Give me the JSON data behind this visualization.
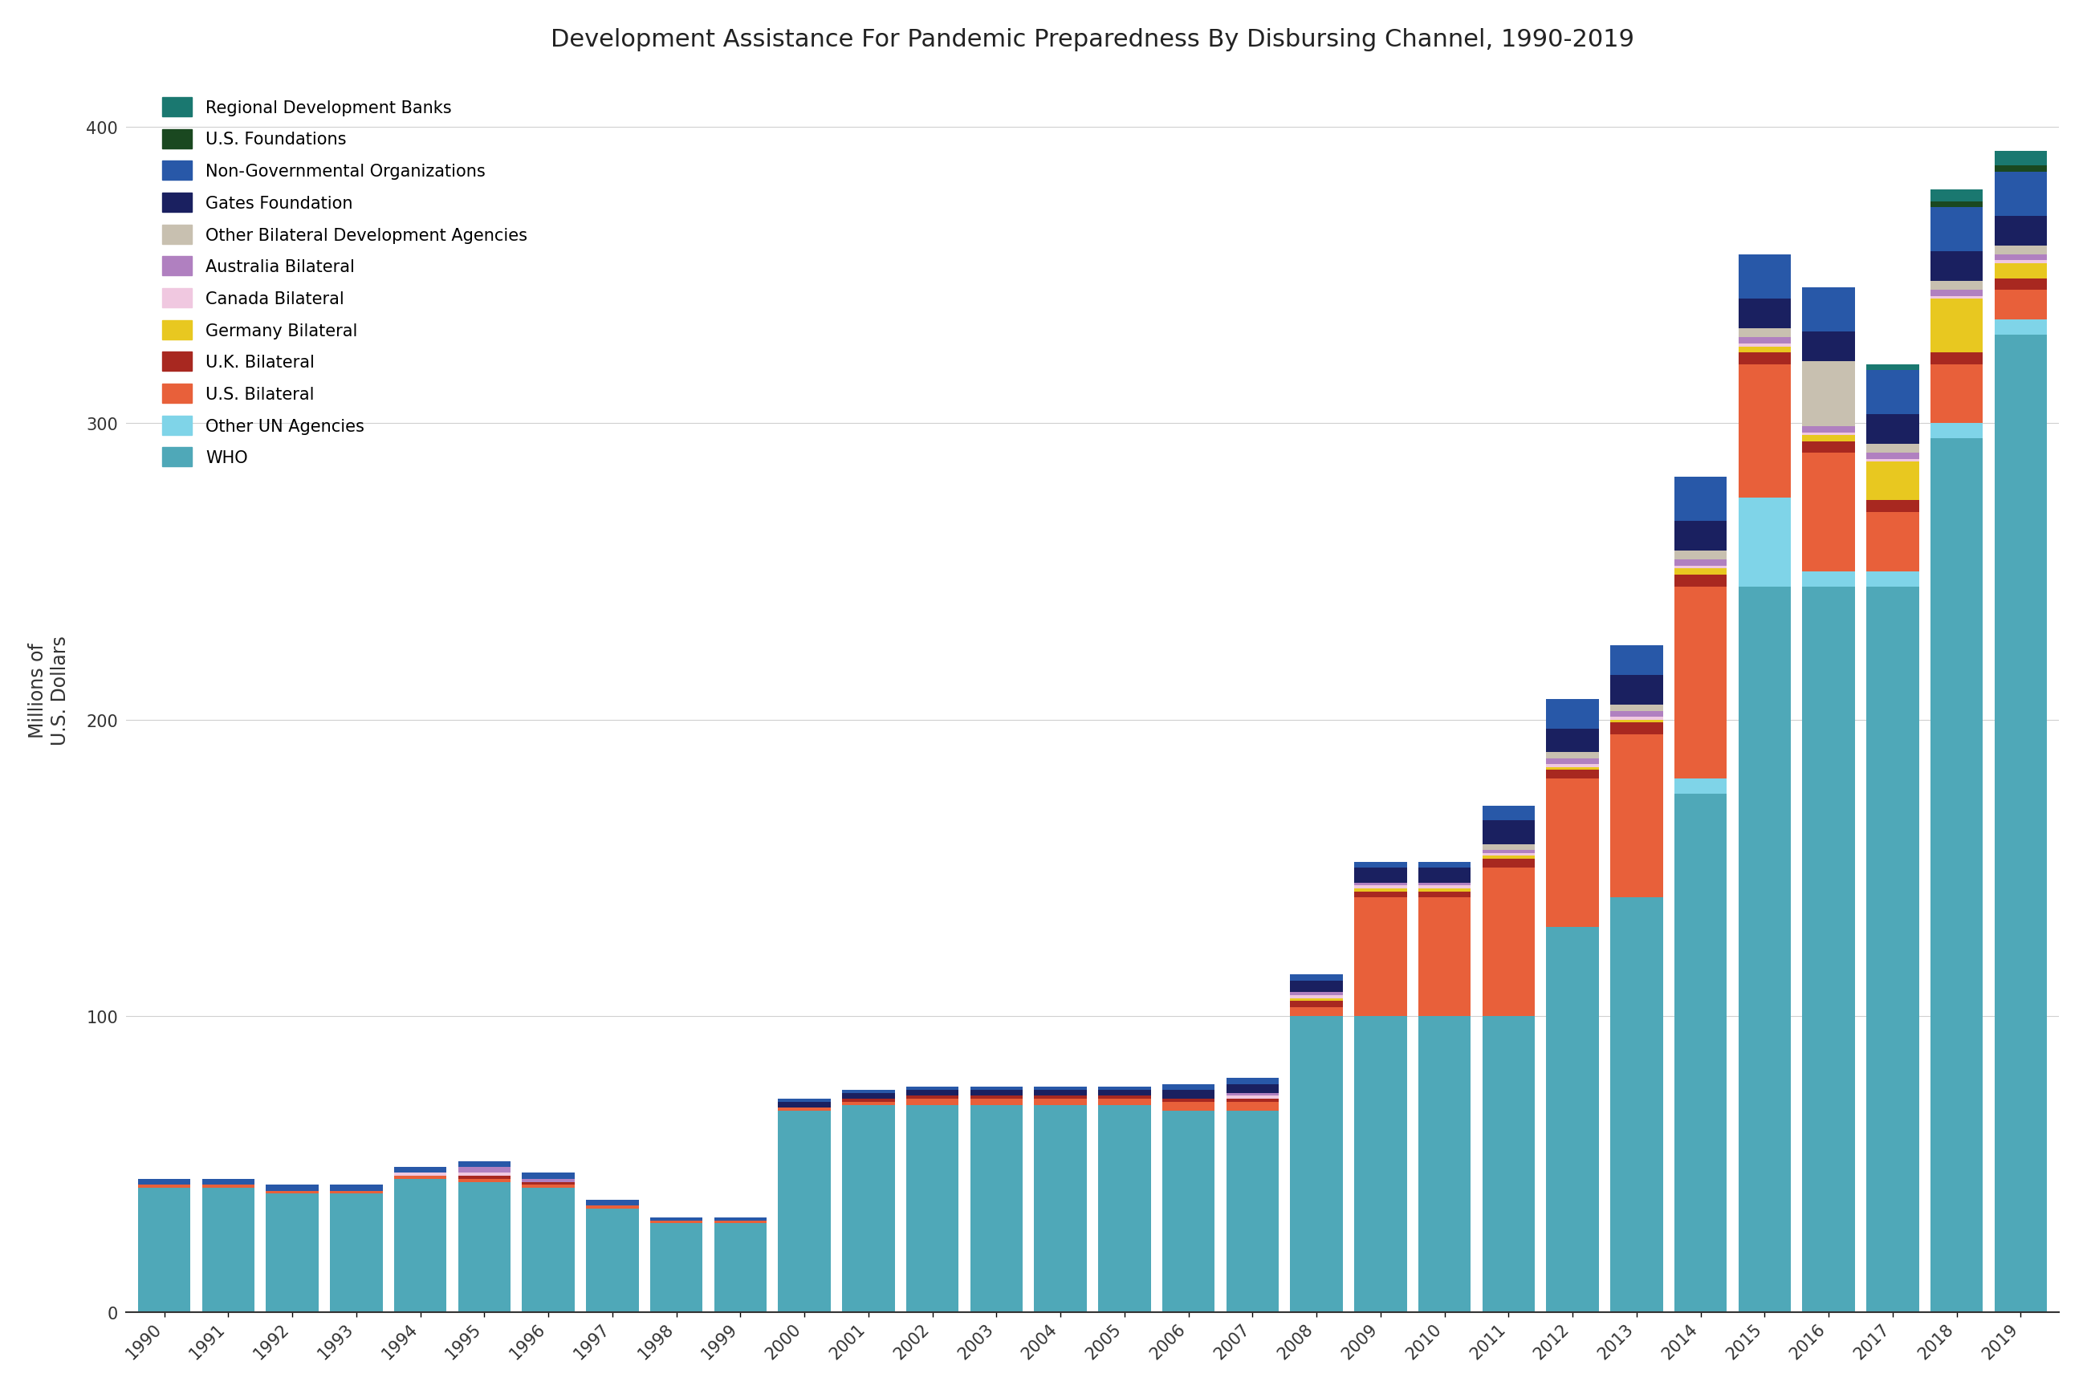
{
  "title": "Development Assistance For Pandemic Preparedness By Disbursing Channel, 1990-2019",
  "ylabel": "Millions of\nU.S. Dollars",
  "years": [
    1990,
    1991,
    1992,
    1993,
    1994,
    1995,
    1996,
    1997,
    1998,
    1999,
    2000,
    2001,
    2002,
    2003,
    2004,
    2005,
    2006,
    2007,
    2008,
    2009,
    2010,
    2011,
    2012,
    2013,
    2014,
    2015,
    2016,
    2017,
    2018,
    2019
  ],
  "series": {
    "WHO": [
      42,
      42,
      40,
      40,
      45,
      44,
      42,
      35,
      30,
      30,
      68,
      70,
      70,
      70,
      70,
      70,
      68,
      68,
      100,
      100,
      100,
      100,
      130,
      140,
      175,
      245,
      245,
      245,
      295,
      330
    ],
    "Other UN Agencies": [
      0,
      0,
      0,
      0,
      0,
      0,
      0,
      0,
      0,
      0,
      0,
      0,
      0,
      0,
      0,
      0,
      0,
      0,
      0,
      0,
      0,
      0,
      0,
      0,
      5,
      30,
      5,
      5,
      5,
      5
    ],
    "U.S. Bilateral": [
      1,
      1,
      1,
      1,
      1,
      1,
      1,
      1,
      1,
      1,
      1,
      1,
      2,
      2,
      2,
      2,
      3,
      3,
      3,
      40,
      40,
      50,
      50,
      55,
      65,
      45,
      40,
      20,
      20,
      10
    ],
    "U.K. Bilateral": [
      0,
      0,
      0,
      0,
      0,
      1,
      1,
      0,
      0,
      0,
      0,
      1,
      1,
      1,
      1,
      1,
      1,
      1,
      2,
      2,
      2,
      3,
      3,
      4,
      4,
      4,
      4,
      4,
      4,
      4
    ],
    "Germany Bilateral": [
      0,
      0,
      0,
      0,
      0,
      0,
      0,
      0,
      0,
      0,
      0,
      0,
      0,
      0,
      0,
      0,
      0,
      0,
      1,
      1,
      1,
      1,
      1,
      1,
      2,
      2,
      2,
      13,
      18,
      5
    ],
    "Canada Bilateral": [
      0,
      0,
      0,
      0,
      1,
      1,
      0,
      0,
      0,
      0,
      0,
      0,
      0,
      0,
      0,
      0,
      0,
      1,
      1,
      1,
      1,
      1,
      1,
      1,
      1,
      1,
      1,
      1,
      1,
      1
    ],
    "Australia Bilateral": [
      0,
      0,
      0,
      0,
      0,
      2,
      1,
      0,
      0,
      0,
      0,
      0,
      0,
      0,
      0,
      0,
      0,
      1,
      1,
      1,
      1,
      1,
      2,
      2,
      2,
      2,
      2,
      2,
      2,
      2
    ],
    "Other Bilateral Development Agencies": [
      0,
      0,
      0,
      0,
      0,
      0,
      0,
      0,
      0,
      0,
      0,
      0,
      0,
      0,
      0,
      0,
      0,
      0,
      0,
      0,
      0,
      2,
      2,
      2,
      3,
      3,
      22,
      3,
      3,
      3
    ],
    "Gates Foundation": [
      0,
      0,
      0,
      0,
      0,
      0,
      0,
      0,
      0,
      0,
      2,
      2,
      2,
      2,
      2,
      2,
      3,
      3,
      4,
      5,
      5,
      8,
      8,
      10,
      10,
      10,
      10,
      10,
      10,
      10
    ],
    "Non-Governmental Organizations": [
      2,
      2,
      2,
      2,
      2,
      2,
      2,
      2,
      1,
      1,
      1,
      1,
      1,
      1,
      1,
      1,
      2,
      2,
      2,
      2,
      2,
      5,
      10,
      10,
      15,
      15,
      15,
      15,
      15,
      15
    ],
    "U.S. Foundations": [
      0,
      0,
      0,
      0,
      0,
      0,
      0,
      0,
      0,
      0,
      0,
      0,
      0,
      0,
      0,
      0,
      0,
      0,
      0,
      0,
      0,
      0,
      0,
      0,
      0,
      0,
      0,
      0,
      2,
      2
    ],
    "Regional Development Banks": [
      0,
      0,
      0,
      0,
      0,
      0,
      0,
      0,
      0,
      0,
      0,
      0,
      0,
      0,
      0,
      0,
      0,
      0,
      0,
      0,
      0,
      0,
      0,
      0,
      0,
      0,
      0,
      2,
      4,
      5
    ]
  },
  "colors": {
    "WHO": "#4fa8b8",
    "Other UN Agencies": "#7fd4e8",
    "U.S. Bilateral": "#e8603a",
    "U.K. Bilateral": "#a82820",
    "Germany Bilateral": "#e8c820",
    "Canada Bilateral": "#f0c8e0",
    "Australia Bilateral": "#b080c0",
    "Other Bilateral Development Agencies": "#c8c0b0",
    "Gates Foundation": "#1a2060",
    "Non-Governmental Organizations": "#2858a8",
    "U.S. Foundations": "#1a4820",
    "Regional Development Banks": "#1a7870"
  },
  "legend_order": [
    "Regional Development Banks",
    "U.S. Foundations",
    "Non-Governmental Organizations",
    "Gates Foundation",
    "Other Bilateral Development Agencies",
    "Australia Bilateral",
    "Canada Bilateral",
    "Germany Bilateral",
    "U.K. Bilateral",
    "U.S. Bilateral",
    "Other UN Agencies",
    "WHO"
  ],
  "stack_order": [
    "WHO",
    "Other UN Agencies",
    "U.S. Bilateral",
    "U.K. Bilateral",
    "Germany Bilateral",
    "Canada Bilateral",
    "Australia Bilateral",
    "Other Bilateral Development Agencies",
    "Gates Foundation",
    "Non-Governmental Organizations",
    "U.S. Foundations",
    "Regional Development Banks"
  ],
  "ylim": [
    0,
    420
  ],
  "yticks": [
    0,
    100,
    200,
    300,
    400
  ],
  "background_color": "#ffffff",
  "grid_color": "#d0d0d0",
  "title_fontsize": 22,
  "axis_fontsize": 17,
  "tick_fontsize": 15,
  "legend_fontsize": 15,
  "bar_width": 0.82
}
